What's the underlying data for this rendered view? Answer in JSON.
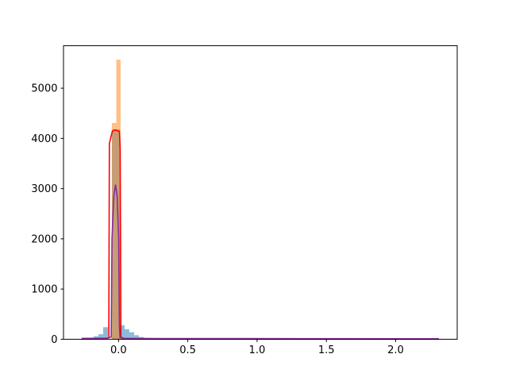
{
  "figure": {
    "background": "#ffffff",
    "spine_color": "#000000",
    "tick_color": "#000000",
    "label_color": "#000000"
  },
  "chart_data": {
    "type": "histogram",
    "title": "",
    "xlabel": "",
    "ylabel": "",
    "grid": false,
    "legend_visible": false,
    "xlim": [
      -0.397,
      2.444
    ],
    "ylim": [
      0,
      5846
    ],
    "x_ticks": {
      "values": [
        0,
        0.5,
        1.0,
        1.5,
        2.0
      ],
      "labels": [
        "0.0",
        "0.5",
        "1.0",
        "1.5",
        "2.0"
      ]
    },
    "y_ticks": {
      "values": [
        0,
        1000,
        2000,
        3000,
        4000,
        5000
      ],
      "labels": [
        "0",
        "1000",
        "2000",
        "3000",
        "4000",
        "5000"
      ]
    },
    "series": [
      {
        "name": "histogram-blue",
        "kind": "bars",
        "color": "#1f77b4",
        "opacity": 0.5,
        "bins": [
          [
            -0.214,
            -0.179,
            15
          ],
          [
            -0.179,
            -0.145,
            60
          ],
          [
            -0.145,
            -0.111,
            100
          ],
          [
            -0.111,
            -0.076,
            240
          ],
          [
            -0.048,
            0.01,
            4180
          ],
          [
            0.01,
            0.044,
            280
          ],
          [
            0.044,
            0.078,
            200
          ],
          [
            0.078,
            0.113,
            140
          ],
          [
            0.113,
            0.147,
            80
          ],
          [
            0.147,
            0.181,
            45
          ],
          [
            0.181,
            0.216,
            25
          ],
          [
            0.216,
            0.25,
            12
          ]
        ]
      },
      {
        "name": "histogram-orange",
        "kind": "bars",
        "color": "#ff7f0e",
        "opacity": 0.5,
        "bins": [
          [
            -0.048,
            -0.016,
            4306
          ],
          [
            -0.016,
            0.015,
            5568
          ]
        ]
      },
      {
        "name": "kde-red",
        "kind": "line",
        "color": "#ff0000",
        "width": 1.6,
        "points": [
          [
            -0.266,
            8
          ],
          [
            -0.12,
            9
          ],
          [
            -0.09,
            12
          ],
          [
            -0.07,
            30
          ],
          [
            -0.066,
            3900
          ],
          [
            -0.045,
            4140
          ],
          [
            -0.026,
            4170
          ],
          [
            0.006,
            4140
          ],
          [
            0.012,
            3800
          ],
          [
            0.017,
            60
          ],
          [
            0.03,
            15
          ],
          [
            0.06,
            9
          ],
          [
            0.3,
            7
          ],
          [
            0.8,
            6
          ],
          [
            1.4,
            5
          ],
          [
            2.0,
            5
          ],
          [
            2.312,
            4
          ]
        ]
      },
      {
        "name": "kde-purple",
        "kind": "line",
        "color": "#8a2b9c",
        "width": 1.6,
        "points": [
          [
            -0.266,
            18
          ],
          [
            -0.12,
            19
          ],
          [
            -0.08,
            22
          ],
          [
            -0.053,
            45
          ],
          [
            -0.047,
            2000
          ],
          [
            -0.034,
            2850
          ],
          [
            -0.022,
            3080
          ],
          [
            -0.01,
            2850
          ],
          [
            0.001,
            2000
          ],
          [
            0.006,
            300
          ],
          [
            0.01,
            35
          ],
          [
            0.04,
            18
          ],
          [
            0.3,
            14
          ],
          [
            0.9,
            12
          ],
          [
            1.6,
            11
          ],
          [
            2.312,
            10
          ]
        ]
      }
    ]
  }
}
